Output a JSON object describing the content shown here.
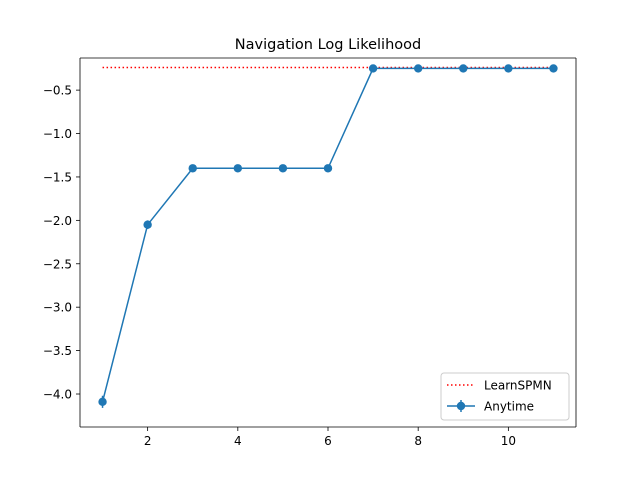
{
  "chart_data": {
    "type": "line",
    "title": "Navigation Log Likelihood",
    "xlabel": "",
    "ylabel": "",
    "xlim": [
      0.5,
      11.5
    ],
    "ylim": [
      -4.38,
      -0.13
    ],
    "xticks": [
      2,
      4,
      6,
      8,
      10
    ],
    "yticks": [
      -4.0,
      -3.5,
      -3.0,
      -2.5,
      -2.0,
      -1.5,
      -1.0,
      -0.5
    ],
    "xtick_labels": [
      "2",
      "4",
      "6",
      "8",
      "10"
    ],
    "ytick_labels": [
      "−4.0",
      "−3.5",
      "−3.0",
      "−2.5",
      "−2.0",
      "−1.5",
      "−1.0",
      "−0.5"
    ],
    "grid": false,
    "legend_position": "lower-right",
    "series": [
      {
        "name": "LearnSPMN",
        "style": "dotted",
        "color": "#ff0000",
        "x": [
          1,
          11
        ],
        "y": [
          -0.24,
          -0.24
        ]
      },
      {
        "name": "Anytime",
        "style": "solid-markers-errorbars",
        "color": "#1f77b4",
        "x": [
          1,
          2,
          3,
          4,
          5,
          6,
          7,
          8,
          9,
          10,
          11
        ],
        "y": [
          -4.09,
          -2.05,
          -1.4,
          -1.4,
          -1.4,
          -1.4,
          -0.25,
          -0.25,
          -0.25,
          -0.25,
          -0.25
        ],
        "yerr": [
          0.07,
          0.05,
          0.02,
          0.02,
          0.02,
          0.02,
          0.02,
          0.02,
          0.02,
          0.02,
          0.02
        ]
      }
    ]
  }
}
